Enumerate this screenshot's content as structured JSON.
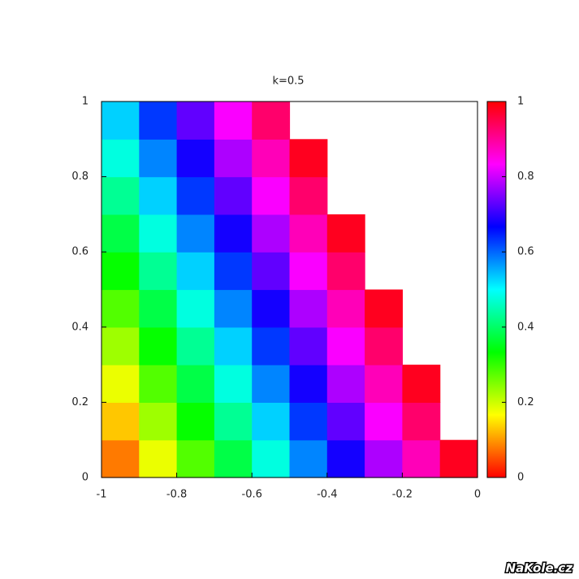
{
  "chart_data": {
    "type": "heatmap",
    "title": "k=0.5",
    "xlim": [
      -1,
      0
    ],
    "ylim": [
      0,
      1
    ],
    "xticks": [
      -1,
      -0.8,
      -0.6,
      -0.4,
      -0.2,
      0
    ],
    "yticks": [
      0,
      0.2,
      0.4,
      0.6,
      0.8,
      1
    ],
    "zlim": [
      0,
      1
    ],
    "zticks": [
      0,
      0.2,
      0.4,
      0.6,
      0.8,
      1
    ],
    "colormap": [
      "#ff0000",
      "#ffff00",
      "#00ff00",
      "#00ffff",
      "#0000ff",
      "#ff00ff",
      "#ff0000"
    ],
    "z": [
      [
        0.08,
        0.18,
        0.28,
        0.38,
        0.48,
        0.58,
        0.68,
        0.78,
        0.88,
        0.98
      ],
      [
        0.13,
        0.23,
        0.33,
        0.43,
        0.53,
        0.63,
        0.73,
        0.83,
        0.93,
        null
      ],
      [
        0.18,
        0.28,
        0.38,
        0.48,
        0.58,
        0.68,
        0.78,
        0.88,
        0.98,
        null
      ],
      [
        0.23,
        0.33,
        0.43,
        0.53,
        0.63,
        0.73,
        0.83,
        0.93,
        null,
        null
      ],
      [
        0.28,
        0.38,
        0.48,
        0.58,
        0.68,
        0.78,
        0.88,
        0.98,
        null,
        null
      ],
      [
        0.33,
        0.43,
        0.53,
        0.63,
        0.73,
        0.83,
        0.93,
        null,
        null,
        null
      ],
      [
        0.38,
        0.48,
        0.58,
        0.68,
        0.78,
        0.88,
        0.98,
        null,
        null,
        null
      ],
      [
        0.43,
        0.53,
        0.63,
        0.73,
        0.83,
        0.93,
        null,
        null,
        null,
        null
      ],
      [
        0.48,
        0.58,
        0.68,
        0.78,
        0.88,
        0.98,
        null,
        null,
        null,
        null
      ],
      [
        0.53,
        0.63,
        0.73,
        0.83,
        0.93,
        null,
        null,
        null,
        null,
        null
      ]
    ],
    "watermark": "NaKole.cz"
  }
}
